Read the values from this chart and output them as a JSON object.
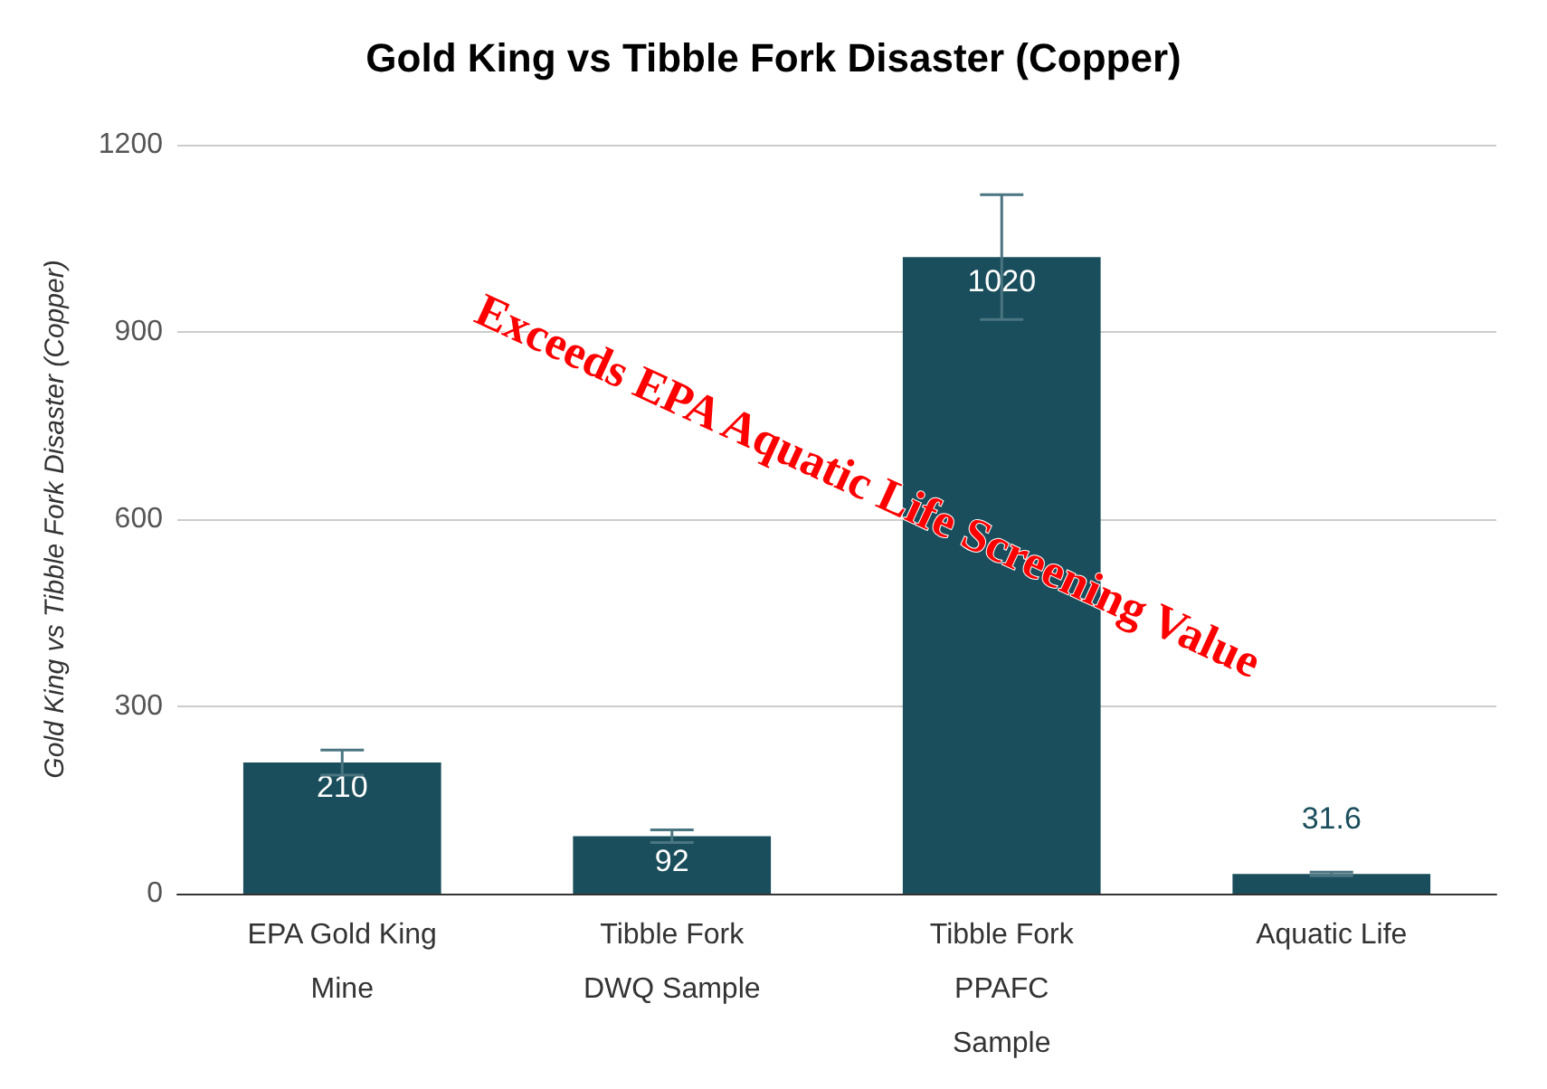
{
  "chart_data": {
    "type": "bar",
    "title": "Gold King vs Tibble Fork Disaster (Copper)",
    "ylabel": "Gold King vs Tibble Fork Disaster (Copper)",
    "categories": [
      "EPA Gold King\nMine",
      "Tibble Fork\nDWQ Sample",
      "Tibble Fork\nPPAFC\nSample",
      "Aquatic Life"
    ],
    "values": [
      210,
      92,
      1020,
      31.6
    ],
    "errors": [
      20,
      10,
      100,
      3
    ],
    "color": "#1a4e5c",
    "ylim": [
      0,
      1200
    ],
    "yticks": [
      0,
      300,
      600,
      900,
      1200
    ],
    "grid": "y",
    "data_labels": true,
    "annotations": [
      "Exceeds EPA Aquatic Life Screening Value"
    ]
  }
}
